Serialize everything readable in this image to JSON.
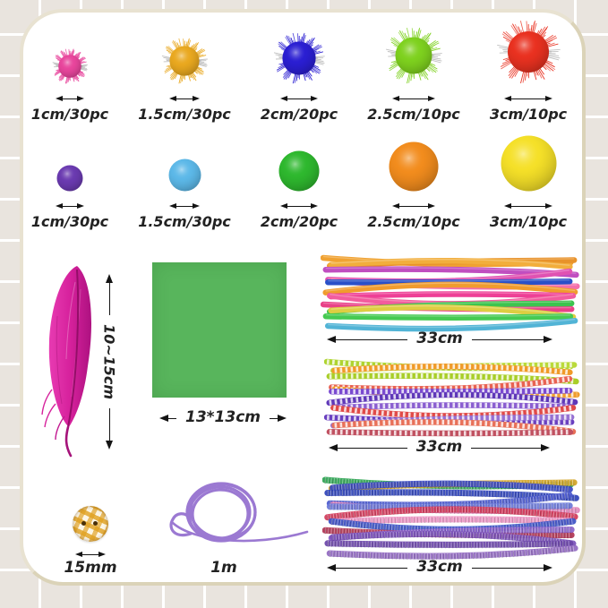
{
  "page": {
    "bg_tile_color": "#e9e4de",
    "grout_color": "#ffffff",
    "card_color": "#ffffff",
    "card_border_color": "#dbd3b8",
    "label_color": "#222222"
  },
  "pom_rows": [
    {
      "type": "glitter-pom-poms",
      "items": [
        {
          "label": "1cm/30pc",
          "color": "#e8459c",
          "size": 40,
          "glitter": true
        },
        {
          "label": "1.5cm/30pc",
          "color": "#e9a81f",
          "size": 52,
          "glitter": true
        },
        {
          "label": "2cm/20pc",
          "color": "#2a1ed2",
          "size": 58,
          "glitter": true
        },
        {
          "label": "2.5cm/10pc",
          "color": "#7ed11e",
          "size": 64,
          "glitter": true
        },
        {
          "label": "3cm/10pc",
          "color": "#e93120",
          "size": 72,
          "glitter": true
        }
      ]
    },
    {
      "type": "plain-pom-poms",
      "items": [
        {
          "label": "1cm/30pc",
          "color": "#6a3ab0",
          "size": 30,
          "glitter": false
        },
        {
          "label": "1.5cm/30pc",
          "color": "#5cb8e8",
          "size": 37,
          "glitter": false
        },
        {
          "label": "2cm/20pc",
          "color": "#2eb82e",
          "size": 46,
          "glitter": false
        },
        {
          "label": "2.5cm/10pc",
          "color": "#f28c1d",
          "size": 56,
          "glitter": false
        },
        {
          "label": "3cm/10pc",
          "color": "#f5e028",
          "size": 63,
          "glitter": false
        }
      ]
    }
  ],
  "feather": {
    "dimension_label": "10~15cm",
    "color": "#d6219c"
  },
  "felt_square": {
    "dimension_label": "13*13cm",
    "color": "#58b55c"
  },
  "bundles": [
    {
      "dimension_label": "33cm",
      "style": "smooth",
      "colors": [
        "#f0a232",
        "#e8922a",
        "#f2ae3c",
        "#c04ec0",
        "#e052b2",
        "#f470aa",
        "#2a50c8",
        "#f09c2e",
        "#ee3f96",
        "#f25c9e",
        "#e84288",
        "#3cc44e",
        "#dece42",
        "#46ca52",
        "#52b4d6"
      ]
    },
    {
      "dimension_label": "33cm",
      "style": "striped",
      "colors": [
        "#aed430",
        "#bada3a",
        "#f09a28",
        "#a8ce28",
        "#e86252",
        "#ef9e2e",
        "#7a4ad0",
        "#5f38b8",
        "#8a5ed0",
        "#e04a48",
        "#6a40c0",
        "#9570d2",
        "#e87058",
        "#c05060"
      ]
    },
    {
      "dimension_label": "33cm",
      "style": "tinsel",
      "colors": [
        "#2ea452",
        "#d2a426",
        "#3848c2",
        "#2e42b8",
        "#4a58cc",
        "#e284ba",
        "#6a78d8",
        "#d23a5a",
        "#ea92c2",
        "#3c52c6",
        "#b03452",
        "#8a62ca",
        "#7a50b8",
        "#6a44a8",
        "#9068c0"
      ]
    }
  ],
  "button": {
    "dimension_label": "15mm",
    "color": "#e2a62c"
  },
  "cord": {
    "dimension_label": "1m",
    "color": "#9b79d2"
  }
}
